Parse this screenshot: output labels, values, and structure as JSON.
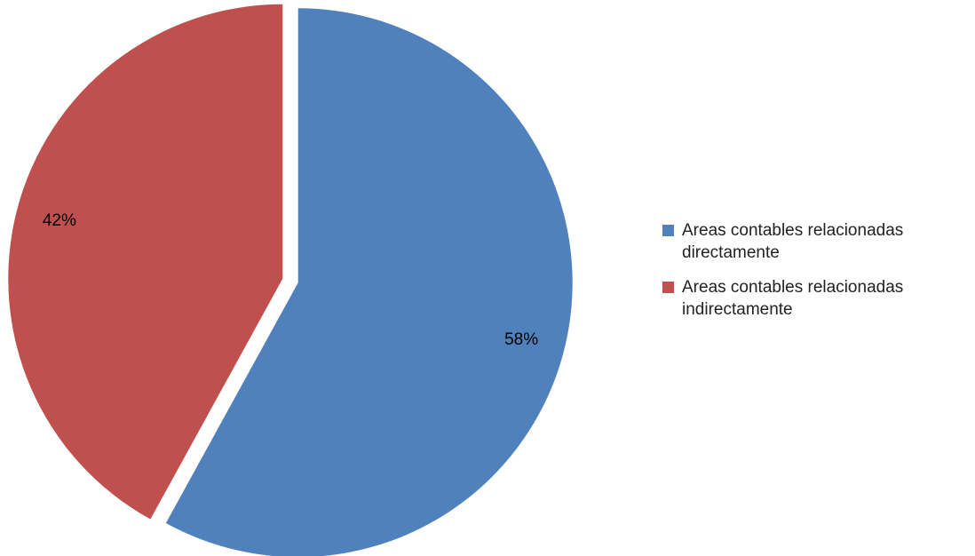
{
  "chart_data": {
    "type": "pie",
    "categories": [
      "Areas contables relacionadas directamente",
      "Areas contables relacionadas indirectamente"
    ],
    "values": [
      58,
      42
    ],
    "data_labels": [
      "58%",
      "42%"
    ],
    "colors": [
      "#4F81BD",
      "#C0504D"
    ],
    "exploded": true,
    "legend_position": "right",
    "legend": [
      {
        "line1": "Areas contables relacionadas",
        "line2": "directamente",
        "color": "#4F81BD"
      },
      {
        "line1": "Areas contables relacionadas",
        "line2": "indirectamente",
        "color": "#C0504D"
      }
    ]
  }
}
